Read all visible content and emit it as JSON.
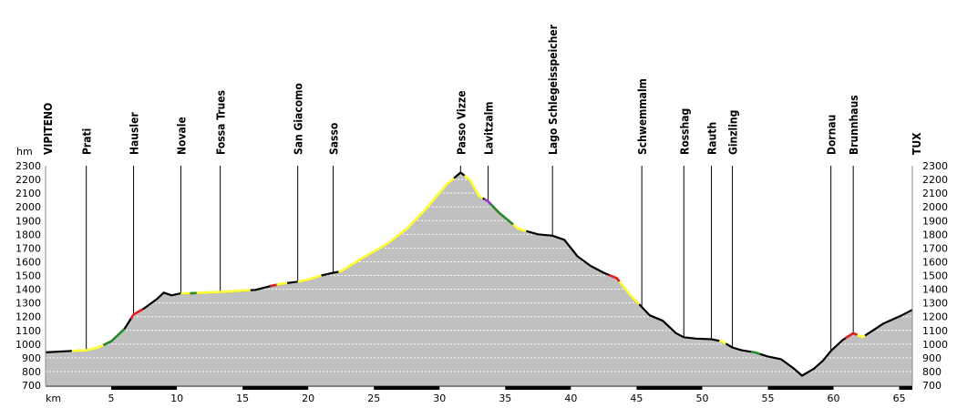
{
  "chart_data": {
    "type": "area",
    "title": "",
    "ylabel": "hm",
    "xlabel": "km",
    "ylim": [
      700,
      2300
    ],
    "xlim": [
      0,
      66
    ],
    "y_ticks": [
      700,
      800,
      900,
      1000,
      1100,
      1200,
      1300,
      1400,
      1500,
      1600,
      1700,
      1800,
      1900,
      2000,
      2100,
      2200,
      2300
    ],
    "x_ticks": [
      5,
      10,
      15,
      20,
      25,
      30,
      35,
      40,
      45,
      50,
      55,
      60,
      65
    ],
    "grid": true,
    "places": [
      {
        "name": "VIPITENO",
        "km": 0.0
      },
      {
        "name": "Prati",
        "km": 3.1
      },
      {
        "name": "Hausler",
        "km": 6.7
      },
      {
        "name": "Novale",
        "km": 10.3
      },
      {
        "name": "Fossa Trues",
        "km": 13.3
      },
      {
        "name": "San Giacomo",
        "km": 19.2
      },
      {
        "name": "Sasso",
        "km": 21.9
      },
      {
        "name": "Passo Vizze",
        "km": 31.6
      },
      {
        "name": "Lavitzalm",
        "km": 33.7
      },
      {
        "name": "Lago Schlegeisspeicher",
        "km": 38.6
      },
      {
        "name": "Schwemmalm",
        "km": 45.4
      },
      {
        "name": "Rosshag",
        "km": 48.6
      },
      {
        "name": "Rauth",
        "km": 50.7
      },
      {
        "name": "Ginzling",
        "km": 52.3
      },
      {
        "name": "Dornau",
        "km": 59.8
      },
      {
        "name": "Brunnhaus",
        "km": 61.5
      },
      {
        "name": "TUX",
        "km": 66.0
      }
    ],
    "x": [
      0,
      2,
      3.1,
      4,
      5,
      6,
      6.7,
      7.5,
      8.5,
      9,
      9.6,
      10.3,
      11,
      12,
      13.3,
      15,
      16,
      17,
      18,
      19.2,
      20,
      21,
      21.9,
      22.5,
      24,
      26,
      27.5,
      29,
      30.5,
      31.6,
      32.3,
      33,
      33.7,
      34.5,
      35,
      36,
      37.5,
      38.6,
      39.5,
      40.5,
      41.5,
      42.5,
      43.5,
      44.5,
      45.4,
      46,
      47,
      48,
      48.6,
      49.5,
      50.7,
      51.5,
      52.3,
      53,
      54,
      55,
      56,
      57,
      57.6,
      58.5,
      59.2,
      59.8,
      60.7,
      61.5,
      62.2,
      63,
      63.8,
      64.5,
      65.2,
      66
    ],
    "y": [
      940,
      950,
      955,
      975,
      1020,
      1110,
      1215,
      1260,
      1330,
      1375,
      1355,
      1370,
      1370,
      1375,
      1380,
      1390,
      1395,
      1420,
      1440,
      1455,
      1470,
      1500,
      1520,
      1530,
      1620,
      1730,
      1840,
      1990,
      2160,
      2250,
      2200,
      2080,
      2040,
      1960,
      1920,
      1840,
      1800,
      1790,
      1760,
      1640,
      1570,
      1520,
      1480,
      1360,
      1270,
      1210,
      1170,
      1080,
      1050,
      1040,
      1035,
      1020,
      975,
      955,
      940,
      910,
      890,
      820,
      770,
      820,
      880,
      950,
      1030,
      1080,
      1050,
      1100,
      1150,
      1180,
      1210,
      1250
    ],
    "segments": [
      {
        "from": 2.0,
        "to": 4.4,
        "color": "#ffff33"
      },
      {
        "from": 4.4,
        "to": 6.0,
        "color": "#2a8a2a"
      },
      {
        "from": 6.5,
        "to": 7.4,
        "color": "#e02020"
      },
      {
        "from": 10.3,
        "to": 11.0,
        "color": "#ffff33"
      },
      {
        "from": 11.0,
        "to": 11.5,
        "color": "#2a8a2a"
      },
      {
        "from": 11.5,
        "to": 15.6,
        "color": "#ffff33"
      },
      {
        "from": 17.1,
        "to": 17.6,
        "color": "#e02020"
      },
      {
        "from": 17.6,
        "to": 18.4,
        "color": "#ffff33"
      },
      {
        "from": 19.2,
        "to": 21.0,
        "color": "#ffff33"
      },
      {
        "from": 22.3,
        "to": 31.1,
        "color": "#ffff33"
      },
      {
        "from": 31.9,
        "to": 33.3,
        "color": "#ffff33"
      },
      {
        "from": 33.4,
        "to": 33.9,
        "color": "#9933cc"
      },
      {
        "from": 33.9,
        "to": 35.6,
        "color": "#2a8a2a"
      },
      {
        "from": 35.6,
        "to": 36.6,
        "color": "#ffff33"
      },
      {
        "from": 42.9,
        "to": 43.7,
        "color": "#e02020"
      },
      {
        "from": 43.7,
        "to": 45.2,
        "color": "#ffff33"
      },
      {
        "from": 51.3,
        "to": 51.8,
        "color": "#ffff33"
      },
      {
        "from": 53.7,
        "to": 54.4,
        "color": "#2a8a2a"
      },
      {
        "from": 60.9,
        "to": 61.8,
        "color": "#e02020"
      },
      {
        "from": 61.8,
        "to": 62.4,
        "color": "#ffff33"
      }
    ],
    "colors": {
      "fill": "#c0c0c0",
      "line": "#000000",
      "grid": "#ffffff",
      "axis_bar": "#000000"
    }
  }
}
